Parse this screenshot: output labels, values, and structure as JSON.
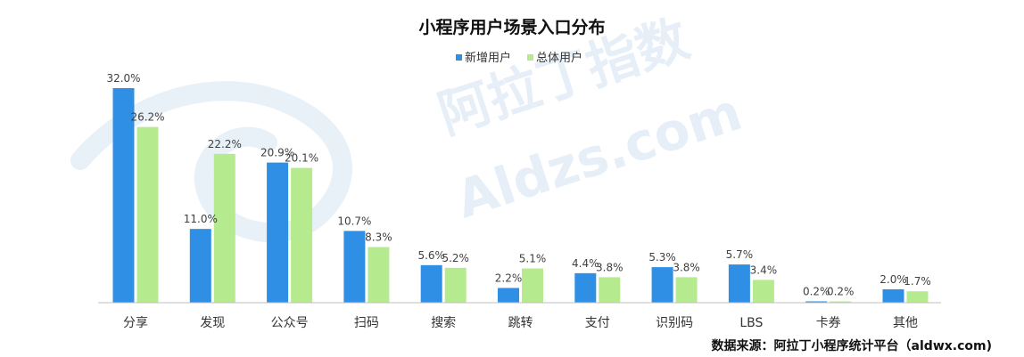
{
  "chart_data": {
    "type": "bar",
    "title": "小程序用户场景入口分布",
    "categories": [
      "分享",
      "发现",
      "公众号",
      "扫码",
      "搜索",
      "跳转",
      "支付",
      "识别码",
      "LBS",
      "卡券",
      "其他"
    ],
    "series": [
      {
        "name": "新增用户",
        "color": "#2f8fe4",
        "values": [
          32.0,
          11.0,
          20.9,
          10.7,
          5.6,
          2.2,
          4.4,
          5.3,
          5.7,
          0.2,
          2.0
        ],
        "labels": [
          "32.0%",
          "11.0%",
          "20.9%",
          "10.7%",
          "5.6%",
          "2.2%",
          "4.4%",
          "5.3%",
          "5.7%",
          "0.2%",
          "2.0%"
        ]
      },
      {
        "name": "总体用户",
        "color": "#b5eb8e",
        "values": [
          26.2,
          22.2,
          20.1,
          8.3,
          5.2,
          5.1,
          3.8,
          3.8,
          3.4,
          0.2,
          1.7
        ],
        "labels": [
          "26.2%",
          "22.2%",
          "20.1%",
          "8.3%",
          "5.2%",
          "5.1%",
          "3.8%",
          "3.8%",
          "3.4%",
          "0.2%",
          "1.7%"
        ]
      }
    ],
    "ylim": [
      0,
      32
    ],
    "legend_position": "top-center",
    "grid": false
  },
  "source": "数据来源：阿拉丁小程序统计平台（aldwx.com)",
  "watermark": {
    "cn": "阿拉丁指数",
    "en": "Aldzs.com"
  }
}
